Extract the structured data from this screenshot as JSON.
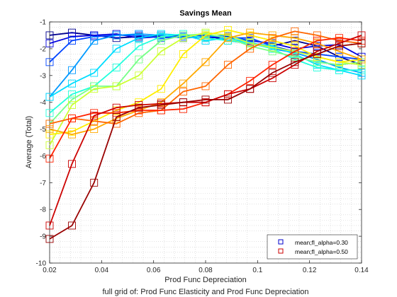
{
  "chart_data": {
    "type": "line",
    "title": "Savings Mean",
    "xlabel": "Prod Func Depreciation",
    "ylabel": "Average (Total)",
    "caption": "full grid of: Prod Func Elasticity and Prod Func Depreciation",
    "xlim": [
      0.02,
      0.14
    ],
    "ylim": [
      -10,
      -1
    ],
    "xticks": [
      0.02,
      0.04,
      0.06,
      0.08,
      0.1,
      0.12,
      0.14
    ],
    "xtick_labels": [
      "0.02",
      "0.04",
      "0.06",
      "0.08",
      "0.1",
      "0.12",
      "0.14"
    ],
    "yticks": [
      -10,
      -9,
      -8,
      -7,
      -6,
      -5,
      -4,
      -3,
      -2,
      -1
    ],
    "ytick_labels": [
      "-10",
      "-9",
      "-8",
      "-7",
      "-6",
      "-5",
      "-4",
      "-3",
      "-2",
      "-1"
    ],
    "grid": "minor-dotted",
    "legend_position": "bottom-right",
    "legend": [
      {
        "label": "mean;fl_alpha=0.30",
        "color": "#0000cc"
      },
      {
        "label": "mean;fl_alpha=0.50",
        "color": "#cc0000"
      }
    ],
    "x": [
      0.02,
      0.0286,
      0.0371,
      0.0457,
      0.0543,
      0.0629,
      0.0714,
      0.08,
      0.0886,
      0.0971,
      0.1057,
      0.1143,
      0.1229,
      0.1314,
      0.14
    ],
    "series": [
      {
        "color": "#00008f",
        "values": [
          -1.5,
          -1.4,
          -1.5,
          -1.6,
          -1.55,
          -1.5,
          -1.6,
          -1.5,
          -1.7,
          -1.8,
          -1.9,
          -1.7,
          -1.9,
          -2.3,
          -2.6
        ]
      },
      {
        "color": "#0000dd",
        "values": [
          -1.8,
          -1.55,
          -1.5,
          -1.45,
          -1.6,
          -1.55,
          -1.5,
          -1.6,
          -1.55,
          -1.7,
          -1.8,
          -2.0,
          -1.9,
          -1.85,
          -2.3
        ]
      },
      {
        "color": "#0044ff",
        "values": [
          -2.5,
          -1.7,
          -1.55,
          -1.5,
          -1.5,
          -1.6,
          -1.55,
          -1.5,
          -1.6,
          -1.6,
          -1.9,
          -2.1,
          -2.2,
          -2.3,
          -2.4
        ]
      },
      {
        "color": "#0099ff",
        "values": [
          -3.8,
          -2.8,
          -1.7,
          -1.5,
          -1.45,
          -1.5,
          -1.6,
          -1.55,
          -1.5,
          -1.75,
          -2.0,
          -2.15,
          -2.4,
          -2.7,
          -2.9
        ]
      },
      {
        "color": "#00ddff",
        "values": [
          -3.8,
          -3.3,
          -2.9,
          -2.0,
          -1.6,
          -1.45,
          -1.5,
          -1.7,
          -1.6,
          -1.8,
          -1.9,
          -2.2,
          -2.6,
          -2.8,
          -3.0
        ]
      },
      {
        "color": "#22ffdd",
        "values": [
          -4.4,
          -3.7,
          -3.4,
          -2.7,
          -1.9,
          -1.55,
          -1.45,
          -1.6,
          -1.7,
          -1.8,
          -2.0,
          -2.4,
          -2.7,
          -2.8,
          -2.8
        ]
      },
      {
        "color": "#77ff88",
        "values": [
          -4.8,
          -3.9,
          -3.4,
          -3.4,
          -2.4,
          -1.7,
          -1.5,
          -1.45,
          -1.6,
          -1.9,
          -2.1,
          -2.3,
          -2.5,
          -2.6,
          -2.5
        ]
      },
      {
        "color": "#ccff33",
        "values": [
          -5.6,
          -4.1,
          -3.5,
          -3.4,
          -3.0,
          -2.1,
          -1.6,
          -1.4,
          -1.5,
          -1.8,
          -1.95,
          -2.1,
          -2.3,
          -2.5,
          -2.6
        ]
      },
      {
        "color": "#ffee00",
        "values": [
          -5.2,
          -5.1,
          -4.7,
          -4.3,
          -4.0,
          -3.5,
          -2.2,
          -1.5,
          -1.3,
          -1.5,
          -1.7,
          -1.9,
          -2.3,
          -2.5,
          -2.4
        ]
      },
      {
        "color": "#ffaa00",
        "values": [
          -5.0,
          -5.2,
          -5.0,
          -4.6,
          -4.3,
          -4.0,
          -3.3,
          -2.5,
          -1.6,
          -1.4,
          -1.5,
          -1.6,
          -1.8,
          -2.1,
          -2.4
        ]
      },
      {
        "color": "#ff6600",
        "values": [
          -4.8,
          -4.6,
          -4.7,
          -4.8,
          -4.4,
          -4.3,
          -3.6,
          -3.4,
          -2.6,
          -2.0,
          -1.6,
          -1.35,
          -1.5,
          -1.7,
          -1.8
        ]
      },
      {
        "color": "#ff2200",
        "values": [
          -6.1,
          -4.6,
          -4.4,
          -4.4,
          -4.3,
          -4.3,
          -4.25,
          -4.0,
          -3.7,
          -3.2,
          -2.6,
          -2.1,
          -1.7,
          -1.6,
          -1.7
        ]
      },
      {
        "color": "#cc0000",
        "values": [
          -8.6,
          -6.3,
          -4.5,
          -4.2,
          -4.1,
          -4.05,
          -4.0,
          -4.0,
          -3.7,
          -3.5,
          -3.1,
          -2.6,
          -2.1,
          -1.8,
          -1.5
        ]
      },
      {
        "color": "#990000",
        "values": [
          -9.1,
          -8.6,
          -7.0,
          -4.55,
          -4.2,
          -4.1,
          -4.0,
          -3.9,
          -3.9,
          -3.5,
          -2.9,
          -2.5,
          -2.2,
          -1.9,
          -1.8
        ]
      }
    ]
  }
}
